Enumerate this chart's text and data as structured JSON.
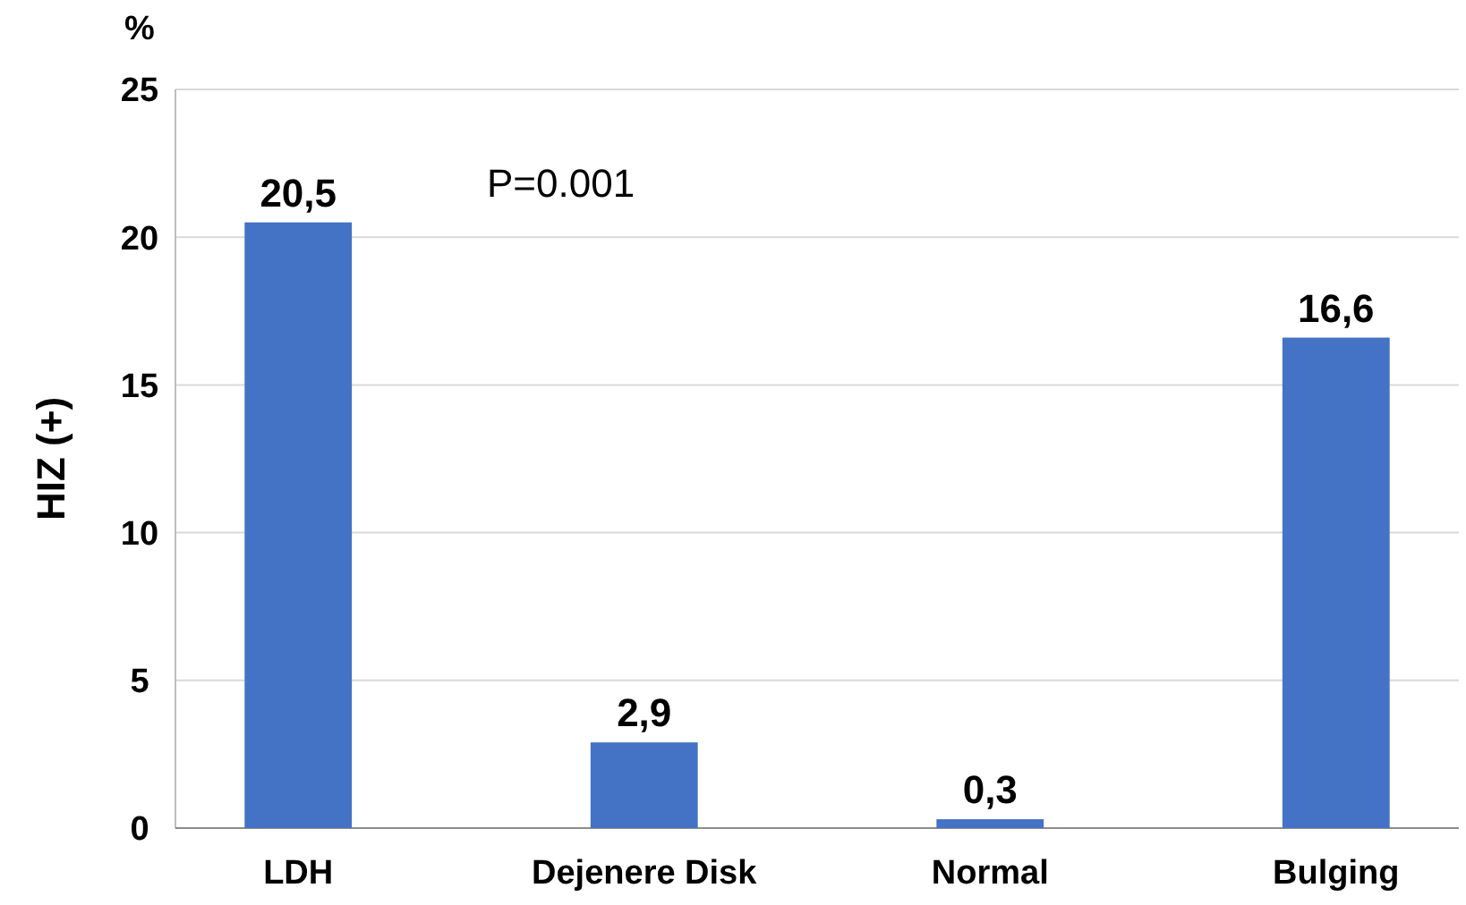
{
  "chart_data": {
    "type": "bar",
    "ylabel": "HIZ (+)",
    "categories": [
      "LDH",
      "Dejenere Disk",
      "Normal",
      "Bulging"
    ],
    "values": [
      20.5,
      2.9,
      0.3,
      16.6
    ],
    "value_labels": [
      "20,5",
      "2,9",
      "0,3",
      "16,6"
    ],
    "color": "#4472c4",
    "ylim": [
      0,
      25
    ],
    "yticks": [
      0,
      5,
      10,
      15,
      20,
      25
    ],
    "grid": "y",
    "annotations": [
      "%",
      "P=0.001"
    ]
  }
}
